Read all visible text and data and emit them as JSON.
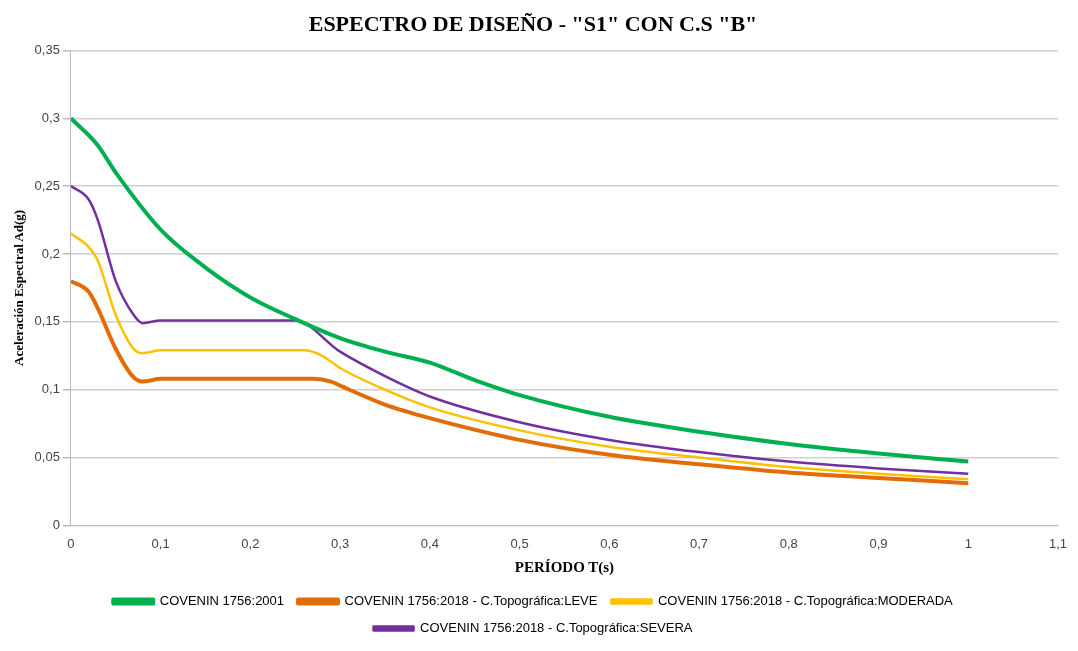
{
  "chart_data": {
    "type": "line",
    "title": "ESPECTRO DE DISEÑO - \"S1\" CON C.S \"B\"",
    "xlabel": "PERÍODO T(s)",
    "ylabel": "Aceleración Espectral Ad(g)",
    "xlim": [
      0,
      1.1
    ],
    "xticks": [
      0,
      {
        "value": 0.1,
        "label": "0,1"
      },
      {
        "value": 0.2,
        "label": "0,2"
      },
      {
        "value": 0.3,
        "label": "0,3"
      },
      {
        "value": 0.4,
        "label": "0,4"
      },
      {
        "value": 0.5,
        "label": "0,5"
      },
      {
        "value": 0.6,
        "label": "0,6"
      },
      {
        "value": 0.7,
        "label": "0,7"
      },
      {
        "value": 0.8,
        "label": "0,8"
      },
      {
        "value": 0.9,
        "label": "0,9"
      },
      1,
      {
        "value": 1.1,
        "label": "1,1"
      }
    ],
    "ylim": [
      0,
      0.35
    ],
    "yticks": [
      0,
      {
        "value": 0.05,
        "label": "0,05"
      },
      {
        "value": 0.1,
        "label": "0,1"
      },
      {
        "value": 0.15,
        "label": "0,15"
      },
      {
        "value": 0.2,
        "label": "0,2"
      },
      {
        "value": 0.25,
        "label": "0,25"
      },
      {
        "value": 0.3,
        "label": "0,3"
      },
      {
        "value": 0.35,
        "label": "0,35"
      }
    ],
    "grid": "y",
    "legend": "bottom",
    "marker": "none",
    "line_style": "solid",
    "series": [
      {
        "name": "COVENIN 1756:2001",
        "color": "#00b050",
        "x": [
          0,
          0.03,
          0.05,
          0.1,
          0.15,
          0.2,
          0.25,
          0.3,
          0.35,
          0.4,
          0.45,
          0.5,
          0.6,
          0.7,
          0.8,
          0.9,
          1
        ],
        "values": [
          0.3,
          0.28,
          0.26,
          0.218,
          0.19,
          0.168,
          0.152,
          0.138,
          0.128,
          0.12,
          0.107,
          0.096,
          0.08,
          0.069,
          0.06,
          0.053,
          0.047
        ]
      },
      {
        "name": "COVENIN 1756:2018 - C.Topográfica:LEVE",
        "color": "#e36c0a",
        "x": [
          0,
          0.02,
          0.03,
          0.05,
          0.07,
          0.08,
          0.1,
          0.2,
          0.27,
          0.29,
          0.3,
          0.35,
          0.4,
          0.5,
          0.6,
          0.7,
          0.8,
          0.9,
          1
        ],
        "values": [
          0.18,
          0.172,
          0.16,
          0.13,
          0.109,
          0.106,
          0.108,
          0.108,
          0.108,
          0.106,
          0.103,
          0.089,
          0.079,
          0.063,
          0.052,
          0.045,
          0.039,
          0.035,
          0.031
        ]
      },
      {
        "name": "COVENIN 1756:2018 - C.Topográfica:MODERADA",
        "color": "#ffc000",
        "x": [
          0,
          0.02,
          0.03,
          0.05,
          0.07,
          0.08,
          0.1,
          0.2,
          0.26,
          0.28,
          0.3,
          0.35,
          0.4,
          0.5,
          0.6,
          0.7,
          0.8,
          0.9,
          1
        ],
        "values": [
          0.215,
          0.205,
          0.195,
          0.155,
          0.13,
          0.127,
          0.129,
          0.129,
          0.129,
          0.125,
          0.116,
          0.1,
          0.087,
          0.07,
          0.058,
          0.05,
          0.043,
          0.038,
          0.034
        ]
      },
      {
        "name": "COVENIN 1756:2018 - C.Topográfica:SEVERA",
        "color": "#7030a0",
        "x": [
          0,
          0.02,
          0.03,
          0.05,
          0.07,
          0.08,
          0.1,
          0.2,
          0.25,
          0.3,
          0.35,
          0.4,
          0.5,
          0.6,
          0.7,
          0.8,
          0.9,
          1
        ],
        "values": [
          0.25,
          0.24,
          0.225,
          0.18,
          0.155,
          0.149,
          0.151,
          0.151,
          0.151,
          0.128,
          0.11,
          0.095,
          0.076,
          0.063,
          0.054,
          0.047,
          0.042,
          0.038
        ]
      }
    ]
  }
}
